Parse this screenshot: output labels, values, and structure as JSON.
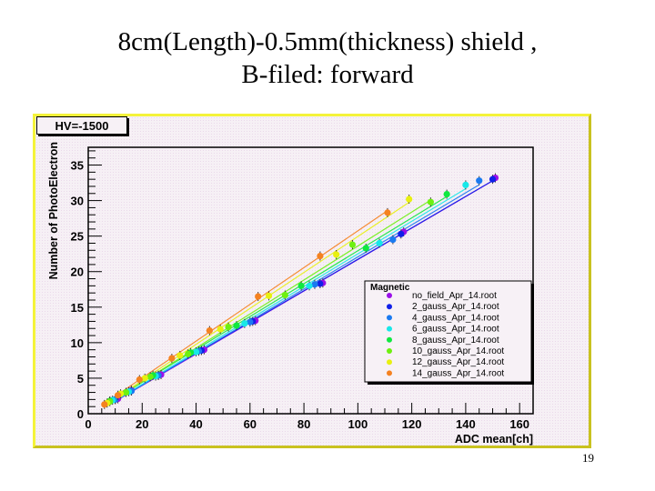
{
  "slide": {
    "title_line1": "8cm(Length)-0.5mm(thickness) shield ,",
    "title_line2": "B-filed: forward",
    "page_number": "19"
  },
  "canvas": {
    "label": "HV=-1500",
    "frame_color_light": "#f4f33a",
    "frame_color_dark": "#c9c21f"
  },
  "chart_data": {
    "type": "scatter",
    "title": "HV=-1500",
    "xlabel": "ADC mean[ch]",
    "ylabel": "Number of PhotoElectron",
    "xlim": [
      0,
      165
    ],
    "ylim": [
      0,
      37.5
    ],
    "x_ticks": [
      0,
      20,
      40,
      60,
      80,
      100,
      120,
      140,
      160
    ],
    "y_ticks": [
      0,
      5,
      10,
      15,
      20,
      25,
      30,
      35
    ],
    "grid": false,
    "legend_title": "Magnetic",
    "legend_position": "center-right",
    "series": [
      {
        "name": "no_field_Apr_14.root",
        "color": "#9b10e8",
        "x": [
          11,
          16,
          27,
          43,
          62,
          87,
          117,
          151
        ],
        "y": [
          2.1,
          3.3,
          5.5,
          9.0,
          13.1,
          18.4,
          25.6,
          33.2
        ]
      },
      {
        "name": "2_gauss_Apr_14.root",
        "color": "#1020e8",
        "x": [
          10,
          16,
          26,
          42,
          61,
          86,
          116,
          150
        ],
        "y": [
          2.0,
          3.2,
          5.4,
          8.9,
          13.0,
          18.3,
          25.3,
          33.0
        ]
      },
      {
        "name": "4_gauss_Apr_14.root",
        "color": "#1a7af0",
        "x": [
          10,
          16,
          26,
          41,
          60,
          84,
          113,
          145
        ],
        "y": [
          2.0,
          3.2,
          5.4,
          8.8,
          12.9,
          18.2,
          24.5,
          32.8
        ]
      },
      {
        "name": "6_gauss_Apr_14.root",
        "color": "#18e8e8",
        "x": [
          9,
          15,
          25,
          40,
          58,
          82,
          108,
          140
        ],
        "y": [
          1.9,
          3.1,
          5.3,
          8.7,
          12.7,
          18.0,
          24.0,
          32.2
        ]
      },
      {
        "name": "8_gauss_Apr_14.root",
        "color": "#10e840",
        "x": [
          8,
          14,
          24,
          38,
          55,
          79,
          103,
          133
        ],
        "y": [
          1.8,
          3.0,
          5.4,
          8.6,
          12.4,
          18.0,
          23.3,
          30.9
        ]
      },
      {
        "name": "10_gauss_Apr_14.root",
        "color": "#6ef010",
        "x": [
          8,
          14,
          23,
          37,
          52,
          73,
          98,
          127
        ],
        "y": [
          1.7,
          3.0,
          5.2,
          8.4,
          12.2,
          16.7,
          23.8,
          29.8
        ]
      },
      {
        "name": "12_gauss_Apr_14.root",
        "color": "#e8f010",
        "x": [
          7,
          12,
          21,
          34,
          49,
          67,
          92,
          119
        ],
        "y": [
          1.5,
          2.8,
          5.0,
          8.2,
          11.9,
          16.6,
          22.4,
          30.2
        ]
      },
      {
        "name": "14_gauss_Apr_14.root",
        "color": "#f58220",
        "x": [
          6,
          11,
          19,
          31,
          45,
          63,
          86,
          111
        ],
        "y": [
          1.3,
          2.6,
          4.8,
          7.8,
          11.7,
          16.5,
          22.2,
          28.3
        ]
      }
    ]
  }
}
